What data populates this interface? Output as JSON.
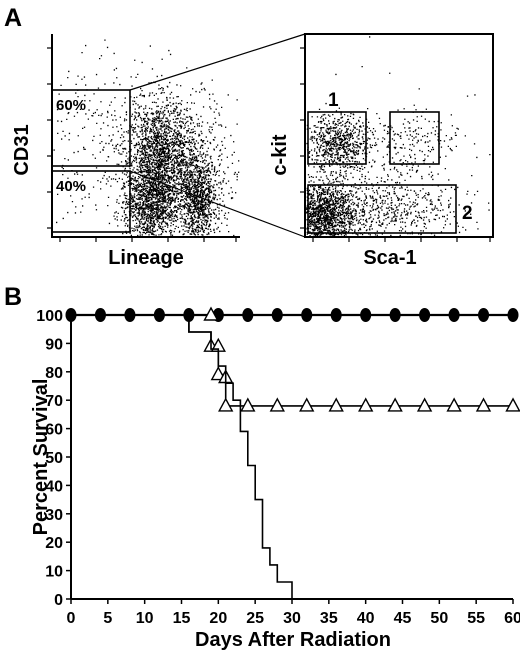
{
  "figure": {
    "panel_a_letter": "A",
    "panel_b_letter": "B",
    "flow_left": {
      "ylabel": "CD31",
      "xlabel": "Lineage",
      "gate_upper_label": "60%",
      "gate_lower_label": "40%"
    },
    "flow_right": {
      "ylabel": "c-kit",
      "xlabel": "Sca-1",
      "gate_1_label": "1",
      "gate_2_label": "2"
    }
  },
  "colors": {
    "ink": "#000000",
    "background": "#ffffff",
    "open_marker_fill": "#ffffff"
  },
  "chart_data": {
    "type": "line",
    "title": "",
    "xlabel": "Days After Radiation",
    "ylabel": "Percent Survival",
    "xlim": [
      0,
      60
    ],
    "ylim": [
      0,
      100
    ],
    "xticks": [
      0,
      5,
      10,
      15,
      20,
      25,
      30,
      35,
      40,
      45,
      50,
      55,
      60
    ],
    "yticks": [
      0,
      10,
      20,
      30,
      40,
      50,
      60,
      70,
      80,
      90,
      100
    ],
    "grid": false,
    "series": [
      {
        "marker": "filled-circle",
        "step": true,
        "points": [
          [
            0,
            100
          ],
          [
            4,
            100
          ],
          [
            8,
            100
          ],
          [
            12,
            100
          ],
          [
            16,
            100
          ],
          [
            20,
            100
          ],
          [
            24,
            100
          ],
          [
            28,
            100
          ],
          [
            32,
            100
          ],
          [
            36,
            100
          ],
          [
            40,
            100
          ],
          [
            44,
            100
          ],
          [
            48,
            100
          ],
          [
            52,
            100
          ],
          [
            56,
            100
          ],
          [
            60,
            100
          ]
        ]
      },
      {
        "marker": "open-triangle",
        "step": true,
        "curve": [
          [
            0,
            100
          ],
          [
            16,
            100
          ],
          [
            16,
            94
          ],
          [
            19,
            94
          ],
          [
            19,
            88
          ],
          [
            20,
            88
          ],
          [
            20,
            79
          ],
          [
            21,
            79
          ],
          [
            21,
            68
          ],
          [
            60,
            68
          ]
        ],
        "points": [
          [
            19,
            100
          ],
          [
            19,
            89
          ],
          [
            20,
            89
          ],
          [
            20,
            79
          ],
          [
            21,
            78
          ],
          [
            21,
            68
          ],
          [
            24,
            68
          ],
          [
            28,
            68
          ],
          [
            32,
            68
          ],
          [
            36,
            68
          ],
          [
            40,
            68
          ],
          [
            44,
            68
          ],
          [
            48,
            68
          ],
          [
            52,
            68
          ],
          [
            56,
            68
          ],
          [
            60,
            68
          ]
        ]
      },
      {
        "marker": "none",
        "step": true,
        "curve": [
          [
            0,
            100
          ],
          [
            16,
            100
          ],
          [
            16,
            94
          ],
          [
            19,
            94
          ],
          [
            19,
            88
          ],
          [
            20,
            88
          ],
          [
            20,
            82
          ],
          [
            21,
            82
          ],
          [
            21,
            76
          ],
          [
            22,
            76
          ],
          [
            22,
            70
          ],
          [
            23,
            70
          ],
          [
            23,
            59
          ],
          [
            24,
            59
          ],
          [
            24,
            47
          ],
          [
            25,
            47
          ],
          [
            25,
            35
          ],
          [
            26,
            35
          ],
          [
            26,
            18
          ],
          [
            27,
            18
          ],
          [
            27,
            12
          ],
          [
            28,
            12
          ],
          [
            28,
            6
          ],
          [
            30,
            6
          ],
          [
            30,
            0
          ]
        ]
      }
    ]
  }
}
